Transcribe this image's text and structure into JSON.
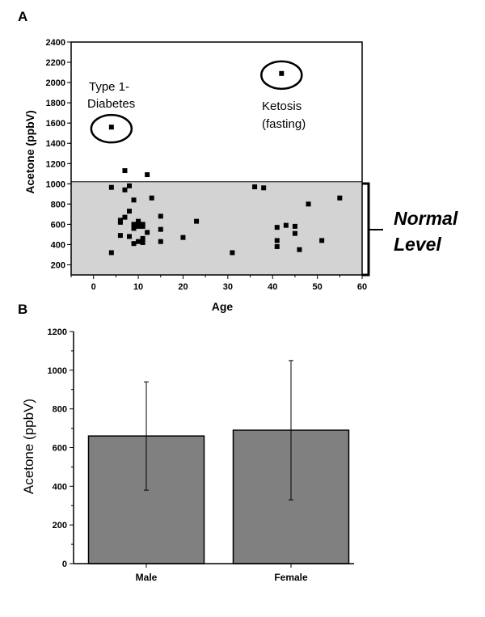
{
  "chart_data": [
    {
      "panel": "A",
      "type": "scatter",
      "xlabel": "Age",
      "ylabel": "Acetone (ppbV)",
      "xlim": [
        -5,
        60
      ],
      "ylim": [
        100,
        2400
      ],
      "xticks": [
        0,
        10,
        20,
        30,
        40,
        50,
        60
      ],
      "yticks": [
        200,
        400,
        600,
        800,
        1000,
        1200,
        1400,
        1600,
        1800,
        2000,
        2200,
        2400
      ],
      "grid": false,
      "normal_band": [
        100,
        1020
      ],
      "annotations": [
        {
          "text": "Type 1-",
          "x": 4,
          "y": 1560
        },
        {
          "text": "Diabetes",
          "x": 4,
          "y": 1560
        },
        {
          "text": "Ketosis",
          "x": 42,
          "y": 2090
        },
        {
          "text": "(fasting)",
          "x": 42,
          "y": 2090
        }
      ],
      "bracket_label": [
        "Normal",
        "Level"
      ],
      "points": [
        [
          4,
          1560
        ],
        [
          42,
          2090
        ],
        [
          4,
          320
        ],
        [
          4,
          965
        ],
        [
          6,
          490
        ],
        [
          6,
          620
        ],
        [
          6,
          640
        ],
        [
          7,
          670
        ],
        [
          7,
          940
        ],
        [
          7,
          1130
        ],
        [
          8,
          480
        ],
        [
          8,
          730
        ],
        [
          8,
          980
        ],
        [
          9,
          410
        ],
        [
          9,
          560
        ],
        [
          9,
          600
        ],
        [
          9,
          840
        ],
        [
          10,
          430
        ],
        [
          10,
          580
        ],
        [
          10,
          610
        ],
        [
          10,
          630
        ],
        [
          11,
          420
        ],
        [
          11,
          460
        ],
        [
          11,
          580
        ],
        [
          11,
          600
        ],
        [
          12,
          520
        ],
        [
          12,
          1090
        ],
        [
          13,
          860
        ],
        [
          15,
          430
        ],
        [
          15,
          550
        ],
        [
          15,
          680
        ],
        [
          20,
          470
        ],
        [
          23,
          630
        ],
        [
          31,
          320
        ],
        [
          36,
          970
        ],
        [
          38,
          960
        ],
        [
          41,
          380
        ],
        [
          41,
          440
        ],
        [
          41,
          570
        ],
        [
          43,
          590
        ],
        [
          45,
          510
        ],
        [
          45,
          580
        ],
        [
          46,
          350
        ],
        [
          48,
          800
        ],
        [
          51,
          440
        ],
        [
          55,
          860
        ]
      ]
    },
    {
      "panel": "B",
      "type": "bar",
      "categories": [
        "Male",
        "Female"
      ],
      "values": [
        660,
        690
      ],
      "error_low": [
        380,
        330
      ],
      "error_high": [
        940,
        1050
      ],
      "ylabel": "Acetone (ppbV)",
      "ylim": [
        0,
        1200
      ],
      "yticks": [
        0,
        200,
        400,
        600,
        800,
        1000,
        1200
      ],
      "bar_color": "#808080"
    }
  ],
  "colors": {
    "band": "#d3d3d3",
    "marker": "#000000",
    "bar": "#808080"
  }
}
